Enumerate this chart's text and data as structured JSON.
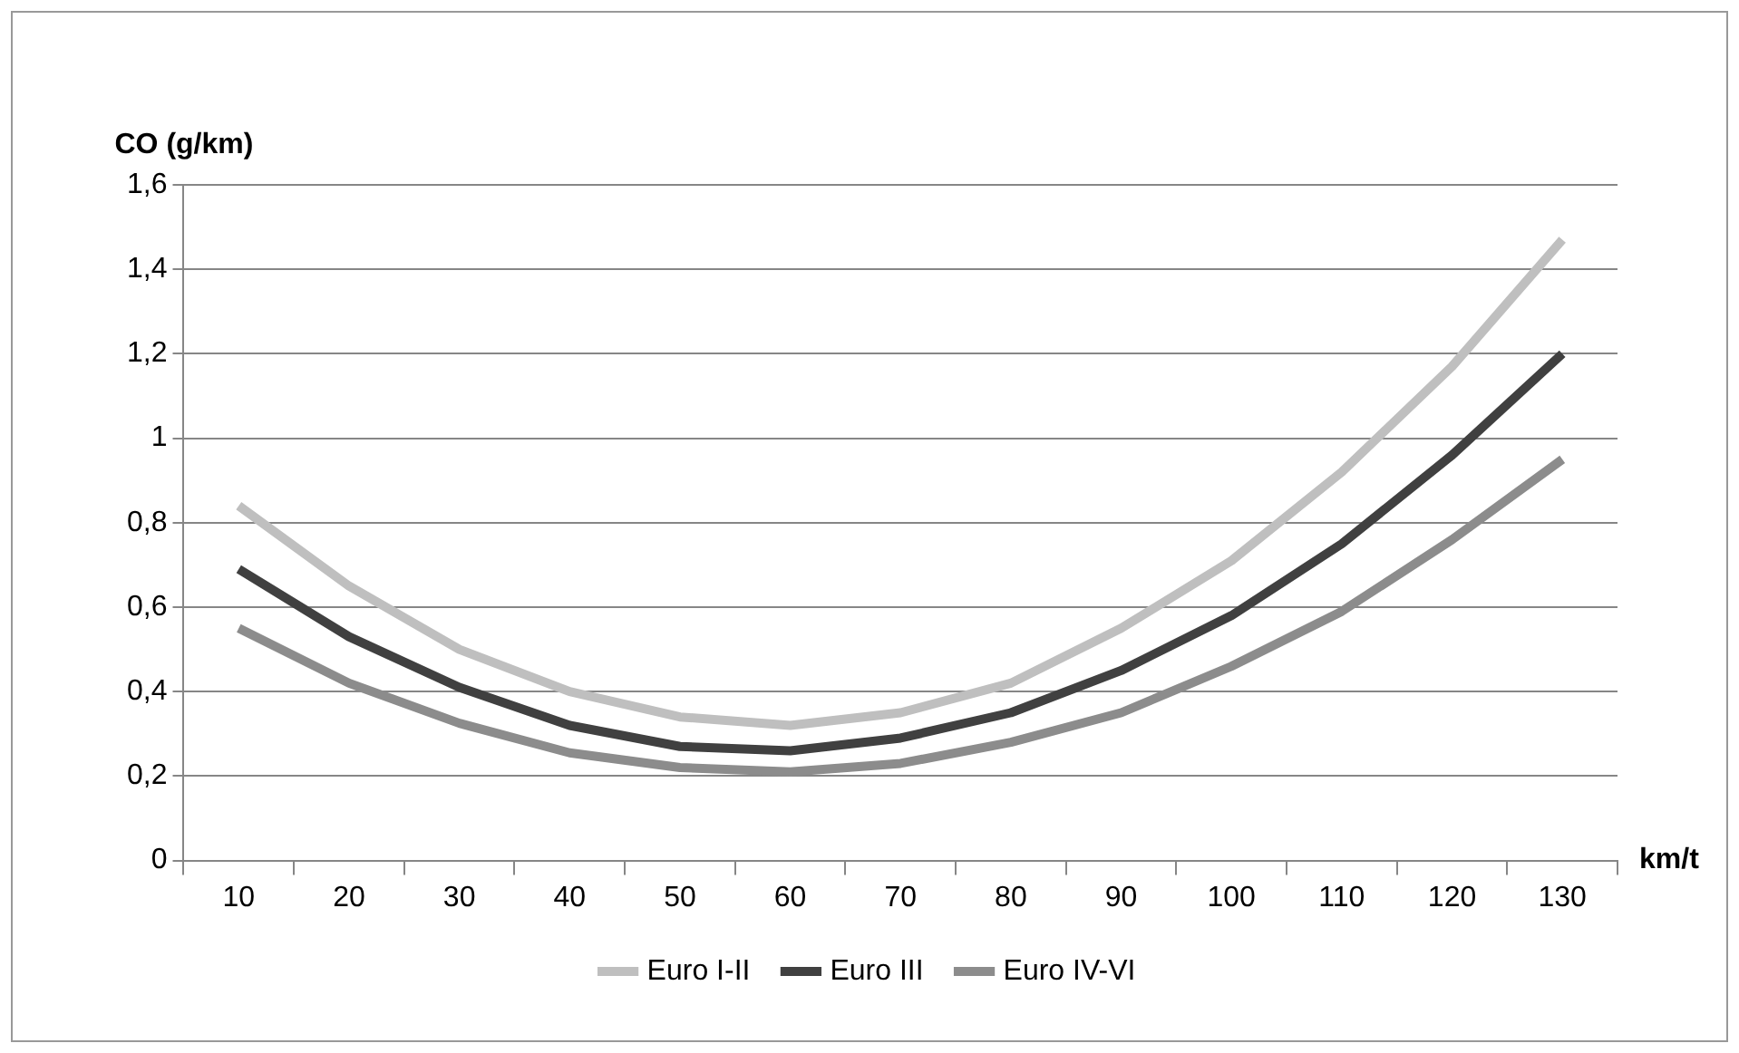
{
  "chart_data": {
    "type": "line",
    "xlabel": "km/t",
    "ylabel": "CO (g/km)",
    "categories": [
      "10",
      "20",
      "30",
      "40",
      "50",
      "60",
      "70",
      "80",
      "90",
      "100",
      "110",
      "120",
      "130"
    ],
    "series": [
      {
        "name": "Euro I-II",
        "color": "#bfbfbf",
        "values": [
          0.84,
          0.65,
          0.5,
          0.4,
          0.34,
          0.32,
          0.35,
          0.42,
          0.55,
          0.71,
          0.92,
          1.17,
          1.47
        ]
      },
      {
        "name": "Euro III",
        "color": "#404040",
        "values": [
          0.69,
          0.53,
          0.41,
          0.32,
          0.27,
          0.26,
          0.29,
          0.35,
          0.45,
          0.58,
          0.75,
          0.96,
          1.2
        ]
      },
      {
        "name": "Euro IV-VI",
        "color": "#8c8c8c",
        "values": [
          0.55,
          0.42,
          0.325,
          0.255,
          0.22,
          0.21,
          0.23,
          0.28,
          0.35,
          0.46,
          0.59,
          0.76,
          0.95
        ]
      }
    ],
    "ylim": [
      0,
      1.6
    ],
    "yticks": [
      0,
      {
        "value": 0.2,
        "label": "0,2"
      },
      {
        "value": 0.4,
        "label": "0,4"
      },
      {
        "value": 0.6,
        "label": "0,6"
      },
      {
        "value": 0.8,
        "label": "0,8"
      },
      1,
      {
        "value": 1.2,
        "label": "1,2"
      },
      {
        "value": 1.4,
        "label": "1,4"
      },
      {
        "value": 1.6,
        "label": "1,6"
      }
    ],
    "grid": "y",
    "legend": "bottom",
    "marker": "none",
    "line_style": "solid"
  }
}
